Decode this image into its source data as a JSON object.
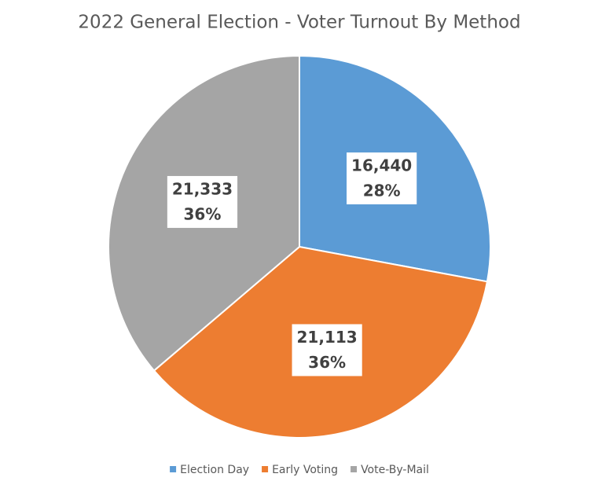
{
  "chart_data": {
    "type": "pie",
    "title": "2022 General Election - Voter Turnout By Method",
    "categories": [
      "Election Day",
      "Early Voting",
      "Vote-By-Mail"
    ],
    "values": [
      16440,
      21113,
      21333
    ],
    "value_labels": [
      "16,440",
      "21,113",
      "21,333"
    ],
    "percent_labels": [
      "28%",
      "36%",
      "36%"
    ],
    "colors": [
      "#5b9bd5",
      "#ed7d31",
      "#a5a5a5"
    ],
    "legend": "bottom"
  }
}
